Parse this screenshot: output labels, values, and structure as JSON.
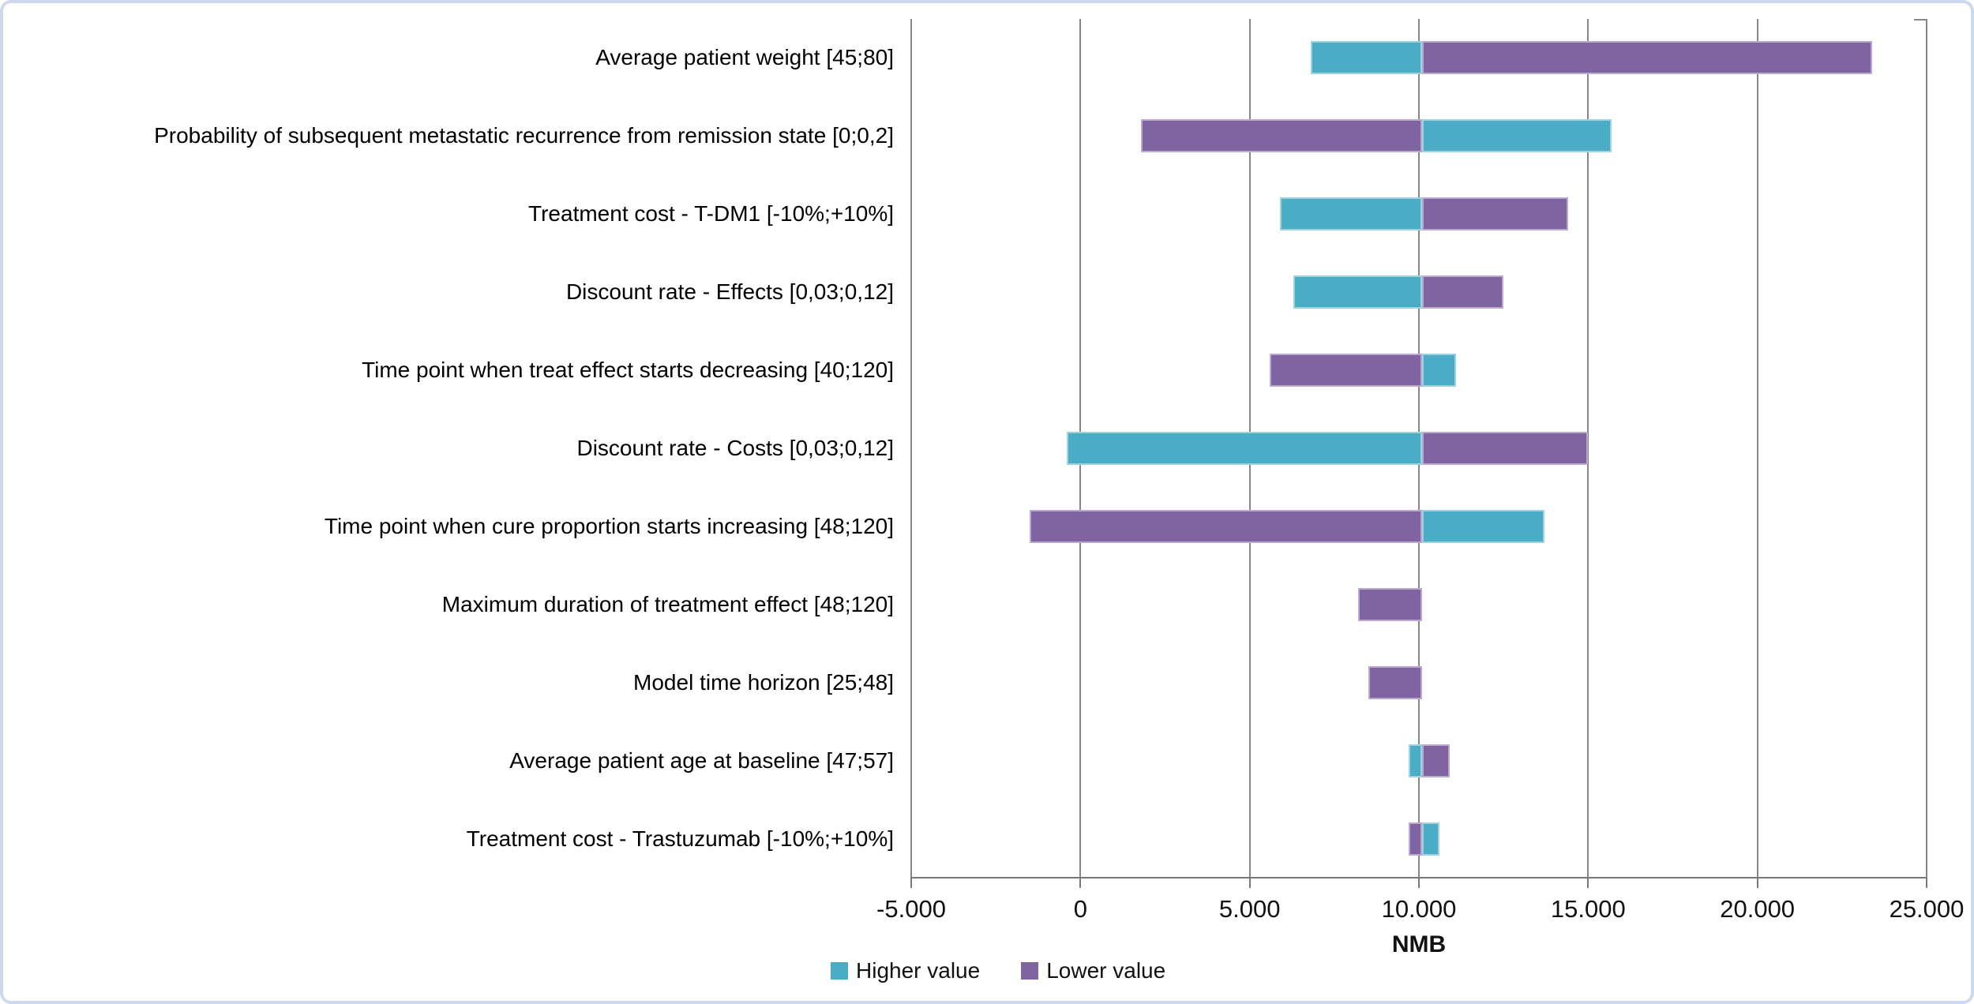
{
  "chart_data": {
    "type": "bar",
    "subtype": "tornado",
    "orientation": "horizontal",
    "title": "",
    "xlabel": "NMB",
    "xlim": [
      -5000,
      25000
    ],
    "x_ticks": [
      -5000,
      0,
      5000,
      10000,
      15000,
      20000,
      25000
    ],
    "x_tick_labels": [
      "-5.000",
      "0",
      "5.000",
      "10.000",
      "15.000",
      "20.000",
      "25.000"
    ],
    "baseline": 10100,
    "grid": "vertical",
    "legend_position": "bottom-left",
    "categories": [
      "Average patient weight [45;80]",
      "Probability of subsequent metastatic recurrence from remission state [0;0,2]",
      "Treatment cost - T-DM1 [-10%;+10%]",
      "Discount rate - Effects [0,03;0,12]",
      "Time point when treat effect starts decreasing [40;120]",
      "Discount rate - Costs [0,03;0,12]",
      "Time point when cure proportion starts increasing [48;120]",
      "Maximum duration of treatment effect [48;120]",
      "Model time horizon [25;48]",
      "Average patient age at baseline [47;57]",
      "Treatment cost - Trastuzumab [-10%;+10%]"
    ],
    "series": [
      {
        "name": "Higher value",
        "color": "#4BACC6",
        "border_color": "#9FD2DF",
        "values": [
          6800,
          15700,
          5900,
          6300,
          11100,
          -400,
          13700,
          10100,
          10100,
          9700,
          10600
        ]
      },
      {
        "name": "Lower value",
        "color": "#8064A2",
        "border_color": "#BBA9CE",
        "values": [
          23400,
          1800,
          14400,
          12500,
          5600,
          15000,
          -1500,
          8200,
          8500,
          10900,
          9700
        ]
      }
    ],
    "colors": {
      "gridline": "#878787",
      "axis": "#787878",
      "frame_border": "#cdd9ee"
    }
  }
}
